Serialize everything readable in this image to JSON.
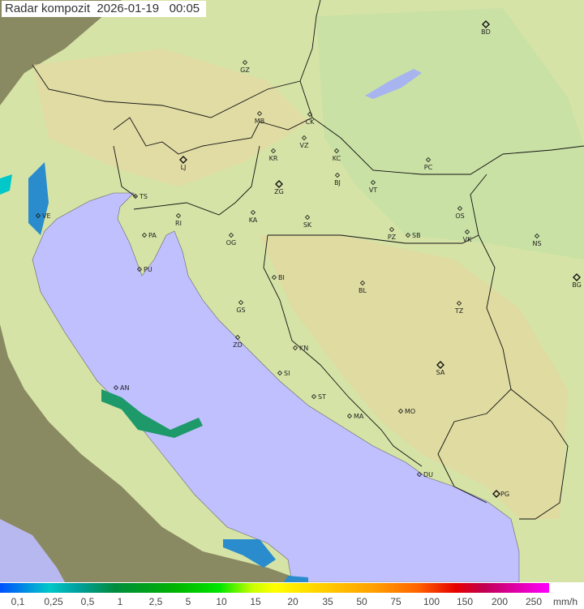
{
  "title": "Radar kompozit  2026-01-19   00:05",
  "legend": {
    "unit": "mm/h",
    "ticks": [
      "0,1",
      "0,25",
      "0,5",
      "1",
      "2,5",
      "5",
      "10",
      "15",
      "20",
      "35",
      "50",
      "75",
      "100",
      "150",
      "200",
      "250"
    ],
    "colors": [
      "#0050ff",
      "#00c8c8",
      "#008c3c",
      "#00e600",
      "#ffff00",
      "#ffa000",
      "#e60000",
      "#ff00ff"
    ]
  },
  "map": {
    "sea_color": "#c0c0ff",
    "land_color": "#d8e6a8",
    "outside_coverage_color": "#8a8a6a",
    "cities": [
      {
        "code": "BD",
        "major": true
      },
      {
        "code": "GZ"
      },
      {
        "code": "MB"
      },
      {
        "code": "CK"
      },
      {
        "code": "VZ"
      },
      {
        "code": "KR"
      },
      {
        "code": "KC"
      },
      {
        "code": "LJ",
        "major": true
      },
      {
        "code": "ZG",
        "major": true
      },
      {
        "code": "BJ"
      },
      {
        "code": "VT"
      },
      {
        "code": "PC"
      },
      {
        "code": "TS"
      },
      {
        "code": "VE"
      },
      {
        "code": "RI"
      },
      {
        "code": "KA"
      },
      {
        "code": "SK"
      },
      {
        "code": "OS"
      },
      {
        "code": "PZ"
      },
      {
        "code": "SB"
      },
      {
        "code": "VK"
      },
      {
        "code": "NS"
      },
      {
        "code": "PA"
      },
      {
        "code": "OG"
      },
      {
        "code": "PU"
      },
      {
        "code": "BI"
      },
      {
        "code": "BL"
      },
      {
        "code": "BG",
        "major": true
      },
      {
        "code": "GS"
      },
      {
        "code": "TZ"
      },
      {
        "code": "ZD"
      },
      {
        "code": "KN"
      },
      {
        "code": "SA",
        "major": true
      },
      {
        "code": "SI"
      },
      {
        "code": "AN"
      },
      {
        "code": "ST"
      },
      {
        "code": "MA"
      },
      {
        "code": "MO"
      },
      {
        "code": "DU"
      },
      {
        "code": "PG",
        "major": true
      }
    ]
  }
}
